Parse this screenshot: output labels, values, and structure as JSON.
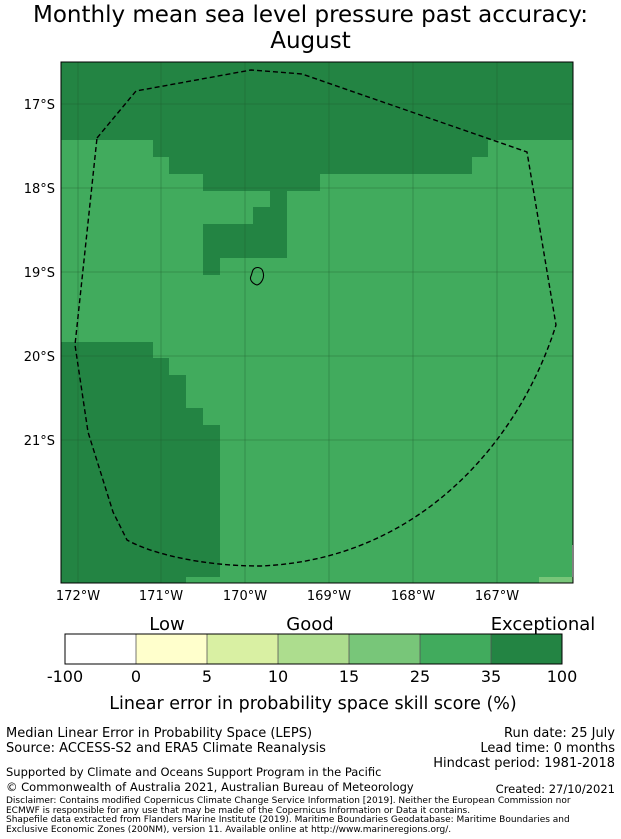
{
  "title_line1": "Monthly mean sea level pressure past accuracy:",
  "title_line2": "August",
  "map": {
    "lat_labels": [
      "17°S",
      "18°S",
      "19°S",
      "20°S",
      "21°S"
    ],
    "lon_labels": [
      "172°W",
      "171°W",
      "170°W",
      "169°W",
      "168°W",
      "167°W"
    ],
    "legend_text": [
      "Low",
      "Good",
      "Exceptional"
    ],
    "colorbar_ticks": [
      "-100",
      "0",
      "5",
      "10",
      "15",
      "25",
      "35",
      "100"
    ],
    "colorbar_colors": [
      "#ffffff",
      "#ffffcc",
      "#d9f0a3",
      "#addd8e",
      "#78c679",
      "#41ab5d",
      "#238443"
    ],
    "colorbar_title": "Linear error in probability space skill score (%)"
  },
  "footer": {
    "metric": "Median Linear Error in Probability Space (LEPS)",
    "source": "Source: ACCESS-S2 and ERA5 Climate Reanalysis",
    "run_date": "Run date: 25 July",
    "lead_time": "Lead time: 0 months",
    "hindcast": "Hindcast period: 1981-2018",
    "support": "Supported by Climate and Oceans Support Program in the Pacific",
    "copyright": "© Commonwealth of Australia 2021, Australian Bureau of Meteorology",
    "created": "Created: 27/10/2021",
    "disclaimer1": "Disclaimer: Contains modified Copernicus Climate Change Service Information [2019]. Neither the European Commission nor",
    "disclaimer2": "ECMWF is responsible for any use that may be made of the Copernicus Information or Data it contains.",
    "shapefile1": "Shapefile data extracted from Flanders Marine Institute (2019). Maritime Boundaries Geodatabase: Maritime Boundaries and",
    "shapefile2": "Exclusive Economic Zones (200NM), version 11. Available online at http://www.marineregions.org/."
  }
}
